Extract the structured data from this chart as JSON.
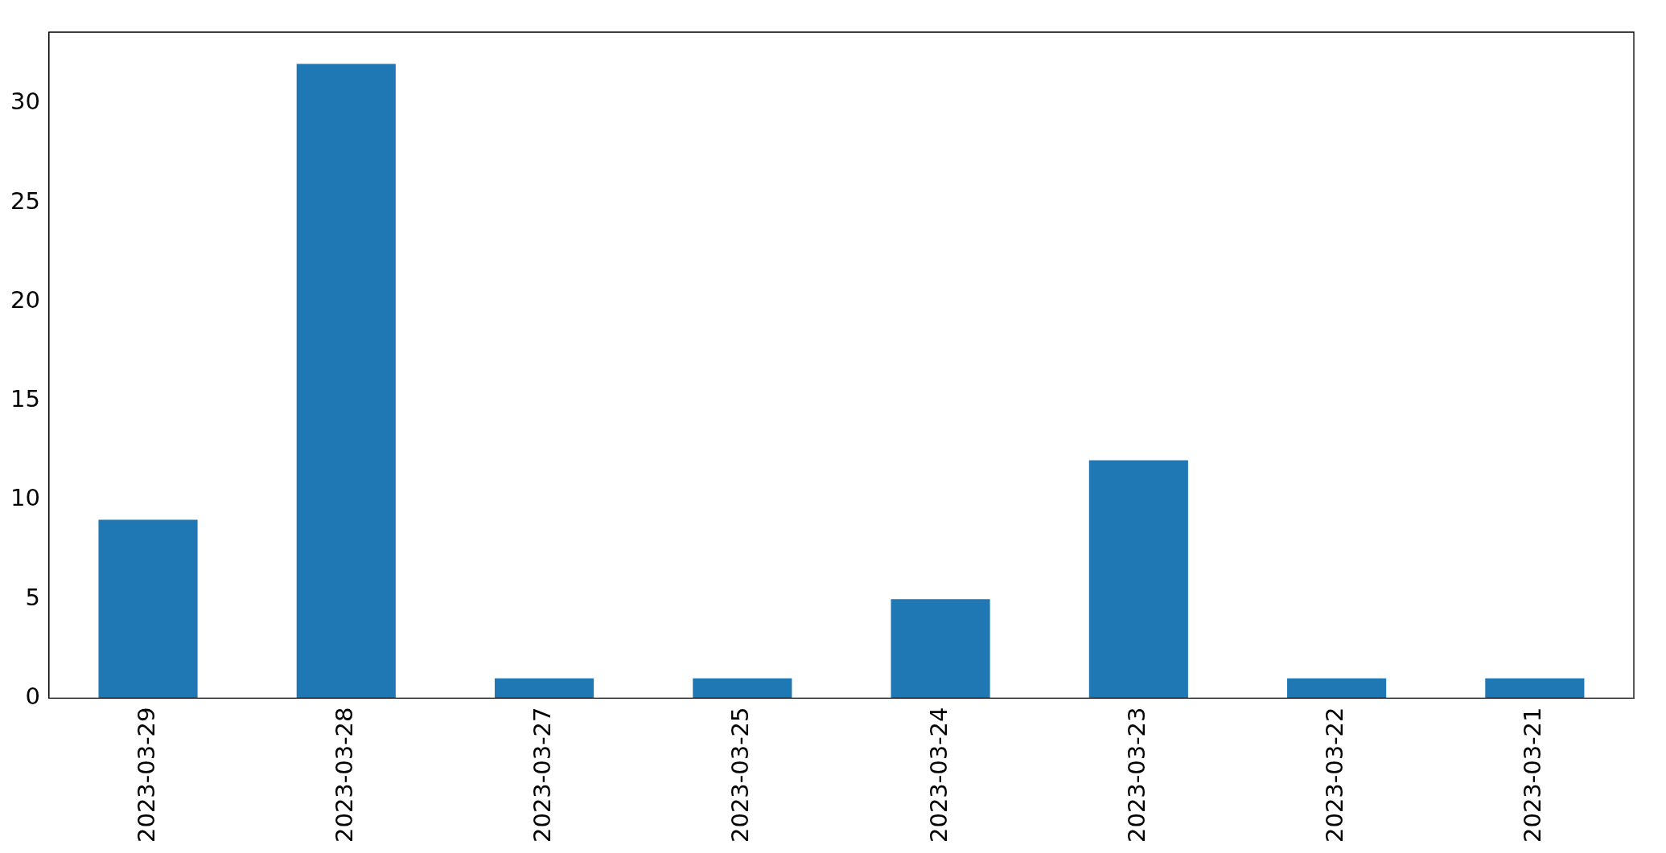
{
  "chart_data": {
    "type": "bar",
    "categories": [
      "2023-03-29",
      "2023-03-28",
      "2023-03-27",
      "2023-03-25",
      "2023-03-24",
      "2023-03-23",
      "2023-03-22",
      "2023-03-21"
    ],
    "values": [
      9,
      32,
      1,
      1,
      5,
      12,
      1,
      1
    ],
    "color": "#1f77b4",
    "ylim": [
      0,
      33.6
    ],
    "yticks": [
      0,
      5,
      10,
      15,
      20,
      25,
      30
    ],
    "grid": false,
    "legend": false
  }
}
